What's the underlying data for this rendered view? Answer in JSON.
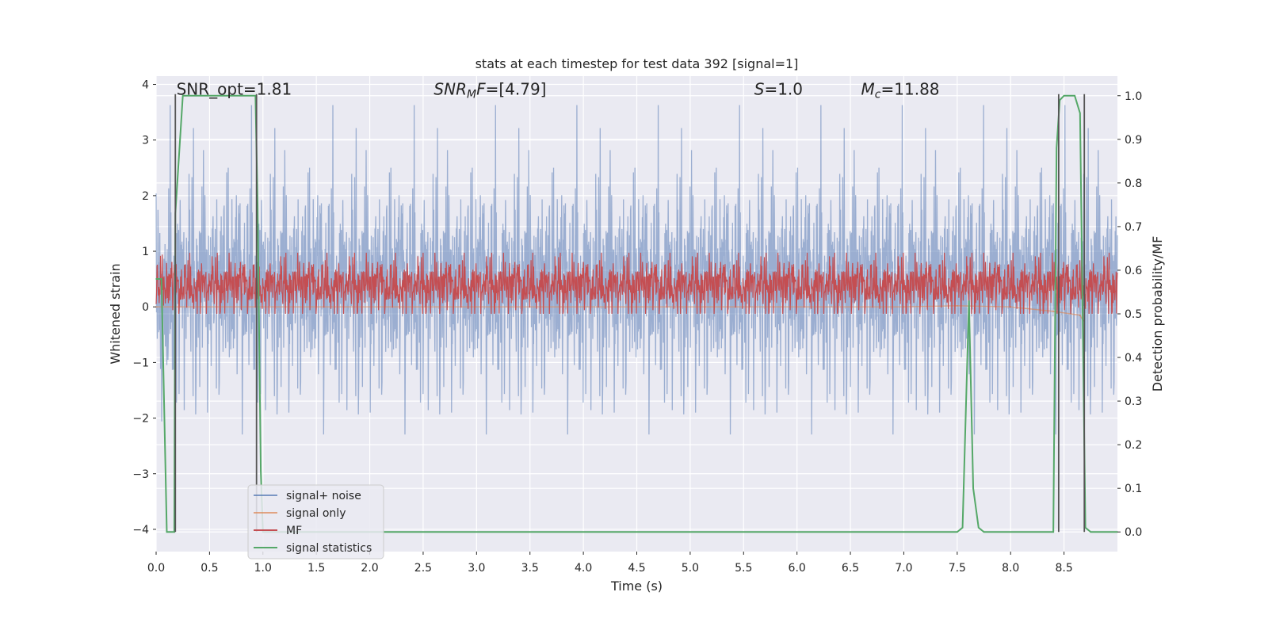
{
  "chart_data": {
    "type": "line",
    "title": "stats at each timestep for test data 392 [signal=1]",
    "xlabel": "Time (s)",
    "ylabel": "Whitened strain",
    "ylabel_right": "Detection probability/MF",
    "xlim": [
      0.0,
      9.0
    ],
    "ylim": [
      -4.4,
      4.15
    ],
    "ylim_right": [
      -0.045,
      1.045
    ],
    "x_ticks": [
      0.0,
      0.5,
      1.0,
      1.5,
      2.0,
      2.5,
      3.0,
      3.5,
      4.0,
      4.5,
      5.0,
      5.5,
      6.0,
      6.5,
      7.0,
      7.5,
      8.0,
      8.5
    ],
    "x_tick_labels": [
      "0.0",
      "0.5",
      "1.0",
      "1.5",
      "2.0",
      "2.5",
      "3.0",
      "3.5",
      "4.0",
      "4.5",
      "5.0",
      "5.5",
      "6.0",
      "6.5",
      "7.0",
      "7.5",
      "8.0",
      "8.5"
    ],
    "y_ticks": [
      4,
      3,
      2,
      1,
      0,
      -1,
      -2,
      -3,
      -4
    ],
    "y_tick_labels": [
      "4",
      "3",
      "2",
      "1",
      "0",
      "−1",
      "−2",
      "−3",
      "−4"
    ],
    "y_right_ticks": [
      1.0,
      0.9,
      0.8,
      0.7,
      0.6,
      0.5,
      0.4,
      0.3,
      0.2,
      0.1,
      0.0
    ],
    "y_right_tick_labels": [
      "1.0",
      "0.9",
      "0.8",
      "0.7",
      "0.6",
      "0.5",
      "0.4",
      "0.3",
      "0.2",
      "0.1",
      "0.0"
    ],
    "grid": true,
    "legend_position": "lower-left",
    "annotations": [
      {
        "text": "SNR_opt=1.81",
        "x": 0.19,
        "y": 3.9
      },
      {
        "text": "SNR",
        "sub": "M",
        "tail": "F=[4.79]",
        "italic": true,
        "x": 2.6,
        "y": 3.9
      },
      {
        "text": "S",
        "tail": "=1.0",
        "italic": true,
        "x": 5.6,
        "y": 3.9
      },
      {
        "text": "M",
        "sub": "c",
        "tail": "=11.88",
        "italic": true,
        "x": 6.6,
        "y": 3.9
      }
    ],
    "series": [
      {
        "name": "signal+ noise",
        "color": "#4c72b0",
        "alpha": 0.5,
        "axis": "left",
        "noise": {
          "x_start": 0.0,
          "x_end": 9.0,
          "amplitude_low": -4.0,
          "amplitude_high": 3.7
        }
      },
      {
        "name": "signal only",
        "color": "#dd8452",
        "alpha": 0.6,
        "axis": "left",
        "x": [
          0.0,
          7.0,
          7.5,
          8.0,
          8.4,
          8.65,
          8.68
        ],
        "y": [
          0.0,
          0.0,
          0.02,
          0.0,
          -0.08,
          -0.15,
          -0.25
        ]
      },
      {
        "name": "MF",
        "color": "#c44e52",
        "alpha": 1.0,
        "axis": "right",
        "band": {
          "x_start": 0.0,
          "x_end": 9.0,
          "low": 0.51,
          "high": 0.59,
          "peak": 0.64
        }
      },
      {
        "name": "signal statistics",
        "color": "#55a868",
        "alpha": 1.0,
        "axis": "right",
        "x": [
          0.0,
          0.05,
          0.1,
          0.13,
          0.17,
          0.18,
          0.25,
          0.5,
          0.93,
          0.95,
          0.98,
          1.0,
          7.5,
          7.55,
          7.61,
          7.65,
          7.7,
          7.75,
          8.4,
          8.43,
          8.46,
          8.5,
          8.6,
          8.65,
          8.7,
          8.75,
          9.0
        ],
        "y": [
          0.58,
          0.58,
          0.0,
          0.0,
          0.0,
          0.73,
          1.0,
          1.0,
          1.0,
          0.75,
          0.14,
          0.0,
          0.0,
          0.01,
          0.53,
          0.1,
          0.01,
          0.0,
          0.0,
          0.88,
          0.99,
          1.0,
          1.0,
          0.96,
          0.01,
          0.0,
          0.0
        ]
      }
    ],
    "vertical_markers": [
      0.18,
      0.94,
      8.45,
      8.69
    ]
  }
}
